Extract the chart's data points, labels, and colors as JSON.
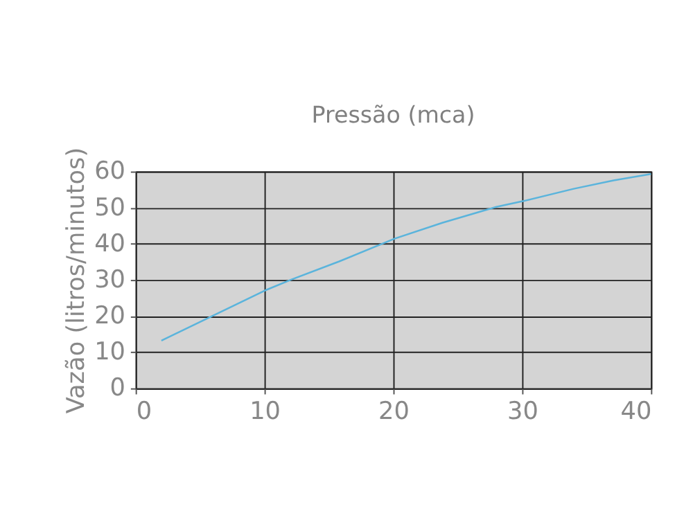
{
  "chart_data": {
    "type": "line",
    "title": "Pressão (mca)",
    "ylabel": "Vazão (litros/minutos)",
    "x": [
      2,
      6,
      10,
      12.1,
      15.8,
      20.1,
      23.8,
      28,
      30.1,
      34,
      37.1,
      40
    ],
    "series": [
      {
        "color": "#5ab4dc",
        "values": [
          13.2,
          20.1,
          27,
          30.1,
          35.1,
          41.4,
          45.8,
          50.2,
          51.8,
          55.2,
          57.5,
          59.3
        ]
      }
    ],
    "xlim": [
      0,
      40
    ],
    "xticks": [
      0,
      10,
      20,
      30,
      40
    ],
    "ylim": [
      0,
      60
    ],
    "yticks": [
      0,
      10,
      20,
      30,
      40,
      50,
      60
    ],
    "grid": true,
    "marker": "none",
    "line_style": "solid"
  }
}
